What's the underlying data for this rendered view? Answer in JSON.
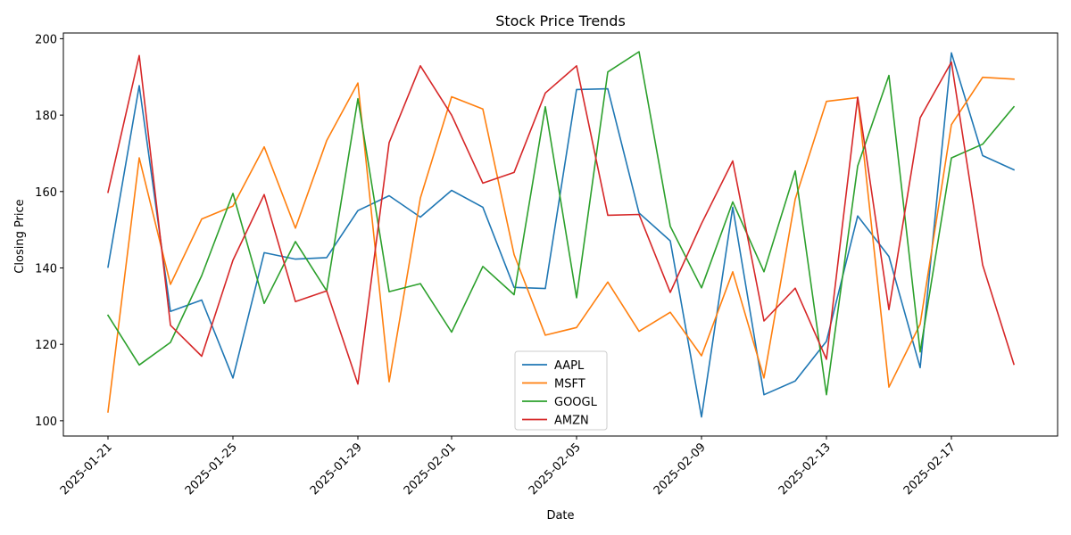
{
  "chart_data": {
    "type": "line",
    "title": "Stock Price Trends",
    "xlabel": "Date",
    "ylabel": "Closing Price",
    "x": [
      "2025-01-21",
      "2025-01-22",
      "2025-01-23",
      "2025-01-24",
      "2025-01-25",
      "2025-01-26",
      "2025-01-27",
      "2025-01-28",
      "2025-01-29",
      "2025-01-30",
      "2025-01-31",
      "2025-02-01",
      "2025-02-02",
      "2025-02-03",
      "2025-02-04",
      "2025-02-05",
      "2025-02-06",
      "2025-02-07",
      "2025-02-08",
      "2025-02-09",
      "2025-02-10",
      "2025-02-11",
      "2025-02-12",
      "2025-02-13",
      "2025-02-14",
      "2025-02-15",
      "2025-02-16",
      "2025-02-17",
      "2025-02-18",
      "2025-02-19"
    ],
    "x_ticks": [
      "2025-01-21",
      "2025-01-25",
      "2025-01-29",
      "2025-02-01",
      "2025-02-05",
      "2025-02-09",
      "2025-02-13",
      "2025-02-17"
    ],
    "y_ticks": [
      100,
      120,
      140,
      160,
      180,
      200
    ],
    "ylim": [
      96,
      201.5
    ],
    "grid": false,
    "legend": "lower-center",
    "series": [
      {
        "name": "AAPL",
        "color": "#1f77b4",
        "values": [
          140.2,
          187.7,
          128.6,
          131.6,
          111.2,
          144.0,
          142.3,
          142.7,
          155.0,
          158.9,
          153.3,
          160.3,
          155.9,
          134.9,
          134.6,
          186.7,
          186.9,
          154.4,
          147.1,
          101.0,
          155.9,
          106.8,
          110.4,
          120.8,
          153.6,
          143.0,
          113.9,
          196.3,
          169.4,
          165.7
        ]
      },
      {
        "name": "MSFT",
        "color": "#ff7f0e",
        "values": [
          102.3,
          168.8,
          135.7,
          152.8,
          156.2,
          171.7,
          150.4,
          173.3,
          188.4,
          110.2,
          158.3,
          184.8,
          181.6,
          143.5,
          122.4,
          124.4,
          136.3,
          123.4,
          128.4,
          117.0,
          139.0,
          111.2,
          158.0,
          183.6,
          184.6,
          108.8,
          125.3,
          177.5,
          189.9,
          189.4
        ]
      },
      {
        "name": "GOOGL",
        "color": "#2ca02c",
        "values": [
          127.6,
          114.6,
          120.5,
          138.0,
          159.5,
          130.7,
          146.9,
          134.0,
          184.3,
          133.8,
          135.9,
          123.2,
          140.4,
          133.0,
          182.2,
          132.2,
          191.3,
          196.6,
          150.9,
          134.8,
          157.3,
          139.0,
          165.4,
          106.8,
          166.7,
          190.4,
          118.0,
          168.8,
          172.4,
          182.2
        ]
      },
      {
        "name": "AMZN",
        "color": "#d62728",
        "values": [
          159.8,
          195.6,
          125.0,
          116.9,
          142.0,
          159.2,
          131.2,
          134.0,
          109.6,
          172.8,
          192.9,
          180.0,
          162.2,
          165.0,
          185.8,
          192.9,
          153.8,
          154.0,
          133.6,
          151.6,
          168.0,
          126.1,
          134.7,
          116.1,
          184.7,
          129.1,
          179.3,
          193.9,
          140.8,
          114.8
        ]
      }
    ]
  }
}
